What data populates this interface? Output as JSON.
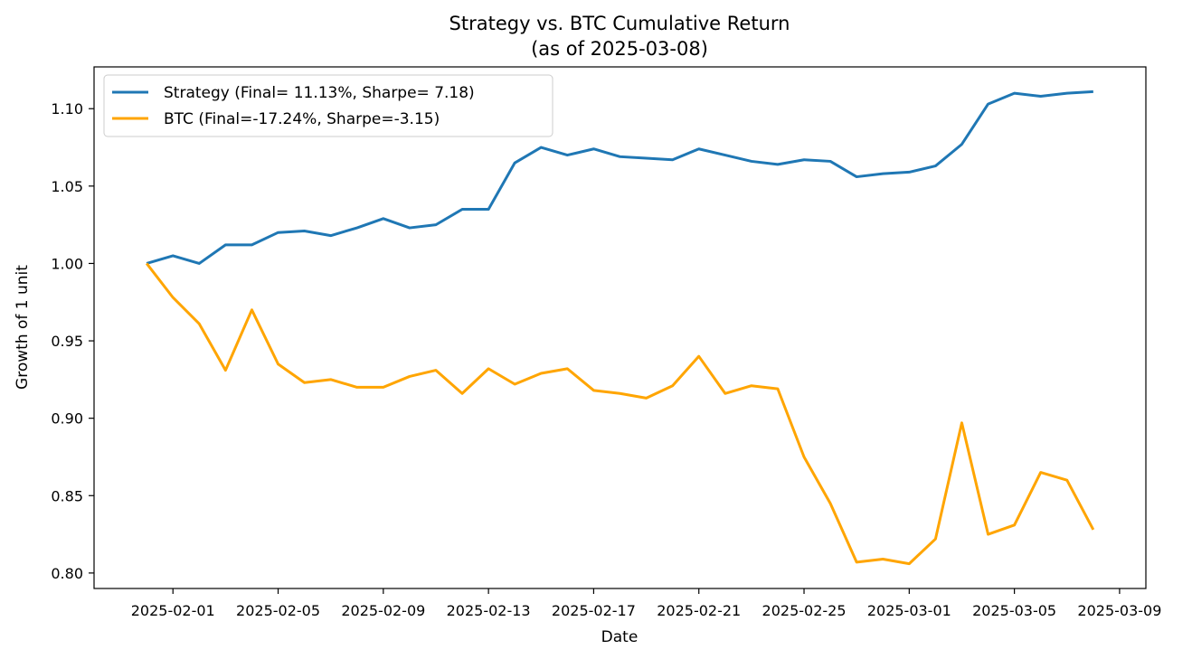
{
  "chart_data": {
    "type": "line",
    "title": "Strategy vs. BTC Cumulative Return",
    "subtitle": "(as of 2025-03-08)",
    "xlabel": "Date",
    "ylabel": "Growth of 1 unit",
    "ylim": [
      0.79,
      1.127
    ],
    "xlim": [
      "2025-01-29",
      "2025-03-10"
    ],
    "grid": false,
    "legend_position": "top-left",
    "x_ticks": [
      "2025-02-01",
      "2025-02-05",
      "2025-02-09",
      "2025-02-13",
      "2025-02-17",
      "2025-02-21",
      "2025-02-25",
      "2025-03-01",
      "2025-03-05",
      "2025-03-09"
    ],
    "y_ticks": [
      "0.80",
      "0.85",
      "0.90",
      "0.95",
      "1.00",
      "1.05",
      "1.10"
    ],
    "x": [
      "2025-01-31",
      "2025-02-01",
      "2025-02-02",
      "2025-02-03",
      "2025-02-04",
      "2025-02-05",
      "2025-02-06",
      "2025-02-07",
      "2025-02-08",
      "2025-02-09",
      "2025-02-10",
      "2025-02-11",
      "2025-02-12",
      "2025-02-13",
      "2025-02-14",
      "2025-02-15",
      "2025-02-16",
      "2025-02-17",
      "2025-02-18",
      "2025-02-19",
      "2025-02-20",
      "2025-02-21",
      "2025-02-22",
      "2025-02-23",
      "2025-02-24",
      "2025-02-25",
      "2025-02-26",
      "2025-02-27",
      "2025-02-28",
      "2025-03-01",
      "2025-03-02",
      "2025-03-03",
      "2025-03-04",
      "2025-03-05",
      "2025-03-06",
      "2025-03-07",
      "2025-03-08"
    ],
    "series": [
      {
        "name": "Strategy (Final= 11.13%, Sharpe= 7.18)",
        "color": "#1f77b4",
        "values": [
          1.0,
          1.005,
          1.0,
          1.012,
          1.012,
          1.02,
          1.021,
          1.018,
          1.023,
          1.029,
          1.023,
          1.025,
          1.035,
          1.035,
          1.065,
          1.075,
          1.07,
          1.074,
          1.069,
          1.068,
          1.067,
          1.074,
          1.07,
          1.066,
          1.064,
          1.067,
          1.066,
          1.056,
          1.058,
          1.059,
          1.063,
          1.077,
          1.103,
          1.11,
          1.108,
          1.11,
          1.111
        ]
      },
      {
        "name": "BTC (Final=-17.24%, Sharpe=-3.15)",
        "color": "#ffa500",
        "values": [
          1.0,
          0.978,
          0.961,
          0.931,
          0.97,
          0.935,
          0.923,
          0.925,
          0.92,
          0.92,
          0.927,
          0.931,
          0.916,
          0.932,
          0.922,
          0.929,
          0.932,
          0.918,
          0.916,
          0.913,
          0.921,
          0.94,
          0.916,
          0.921,
          0.919,
          0.875,
          0.845,
          0.807,
          0.809,
          0.806,
          0.822,
          0.897,
          0.825,
          0.831,
          0.865,
          0.86,
          0.828
        ]
      }
    ]
  }
}
